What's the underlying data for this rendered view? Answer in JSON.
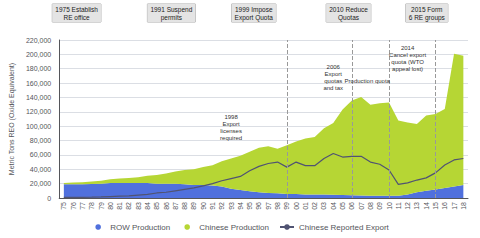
{
  "chart_data": {
    "type": "area",
    "ylabel": "Metric Tons REO (Oxide Equivalent)",
    "categories": [
      "75",
      "76",
      "77",
      "78",
      "79",
      "80",
      "81",
      "82",
      "83",
      "84",
      "85",
      "86",
      "87",
      "88",
      "89",
      "90",
      "91",
      "92",
      "93",
      "94",
      "95",
      "96",
      "97",
      "98",
      "99",
      "00",
      "01",
      "02",
      "03",
      "04",
      "05",
      "06",
      "07",
      "08",
      "09",
      "10",
      "11",
      "12",
      "13",
      "14",
      "15",
      "16",
      "17",
      "18"
    ],
    "stacked": true,
    "series": [
      {
        "name": "ROW Production",
        "type": "area",
        "values": [
          19000,
          19000,
          19000,
          19500,
          20000,
          21000,
          21000,
          21000,
          21000,
          21000,
          20000,
          20000,
          20000,
          19000,
          18000,
          18000,
          17500,
          16000,
          13000,
          11000,
          9500,
          8000,
          7000,
          6500,
          5500,
          5500,
          5000,
          5000,
          5000,
          4500,
          4200,
          3800,
          3500,
          3000,
          3000,
          3000,
          3000,
          5000,
          8000,
          10000,
          12000,
          14000,
          16000,
          18000
        ]
      },
      {
        "name": "Chinese Production",
        "type": "area",
        "values": [
          2000,
          2500,
          3000,
          3500,
          4000,
          5000,
          6000,
          7000,
          8000,
          10000,
          12000,
          14000,
          17000,
          20000,
          22000,
          25000,
          28000,
          35000,
          42000,
          48000,
          55000,
          62000,
          65000,
          62000,
          68000,
          73000,
          78000,
          80000,
          92000,
          100000,
          119000,
          132000,
          137000,
          127000,
          129000,
          130000,
          105000,
          100000,
          95000,
          105000,
          105000,
          110000,
          185000,
          180000
        ]
      },
      {
        "name": "Chinese Reported Export",
        "type": "line",
        "values": [
          800,
          900,
          1000,
          1200,
          1500,
          2000,
          2500,
          3000,
          4000,
          5000,
          7000,
          8000,
          10000,
          12000,
          14000,
          17000,
          20000,
          24000,
          27000,
          30000,
          38000,
          44000,
          48000,
          50000,
          43000,
          50000,
          45000,
          45000,
          55000,
          62000,
          57000,
          58000,
          58000,
          50000,
          47000,
          39000,
          19000,
          21000,
          25000,
          28000,
          35000,
          46000,
          53000,
          55000
        ]
      }
    ],
    "ylim": [
      0,
      220000
    ],
    "yticks": [
      0,
      {
        "value": 20000,
        "label": "20,000"
      },
      {
        "value": 40000,
        "label": "40,000"
      },
      {
        "value": 60000,
        "label": "60,000"
      },
      {
        "value": 80000,
        "label": "80,000"
      },
      {
        "value": 100000,
        "label": "100,000"
      },
      {
        "value": 120000,
        "label": "120,000"
      },
      {
        "value": 140000,
        "label": "140,000"
      },
      {
        "value": 160000,
        "label": "160,000"
      },
      {
        "value": 180000,
        "label": "180,000"
      },
      {
        "value": 200000,
        "label": "200,000"
      },
      {
        "value": 220000,
        "label": "220,000"
      }
    ],
    "grid": true,
    "legend": "bottom",
    "vertical_lines": [
      "99",
      "06",
      "10",
      "15"
    ],
    "policy_labels": [
      "1975 Establish\nRE office",
      "1991 Suspend\npermits",
      "1999 Impose\nExport Quota",
      "2010 Reduce\nQuotas",
      "2015 Form\n6 RE groups"
    ],
    "annotations": [
      {
        "text": "1998\nExport\nlicenses\nrequired",
        "x": "93",
        "y": 78000
      },
      {
        "text": "2006\nExport\nquotas\nand tax",
        "x": "04",
        "y": 148000
      },
      {
        "text": "Production quota",
        "x": "05",
        "y": 158000
      },
      {
        "text": "2014\nCancel export\nquota (WTO\nappeal lost)",
        "x": "12",
        "y": 175000
      }
    ]
  }
}
